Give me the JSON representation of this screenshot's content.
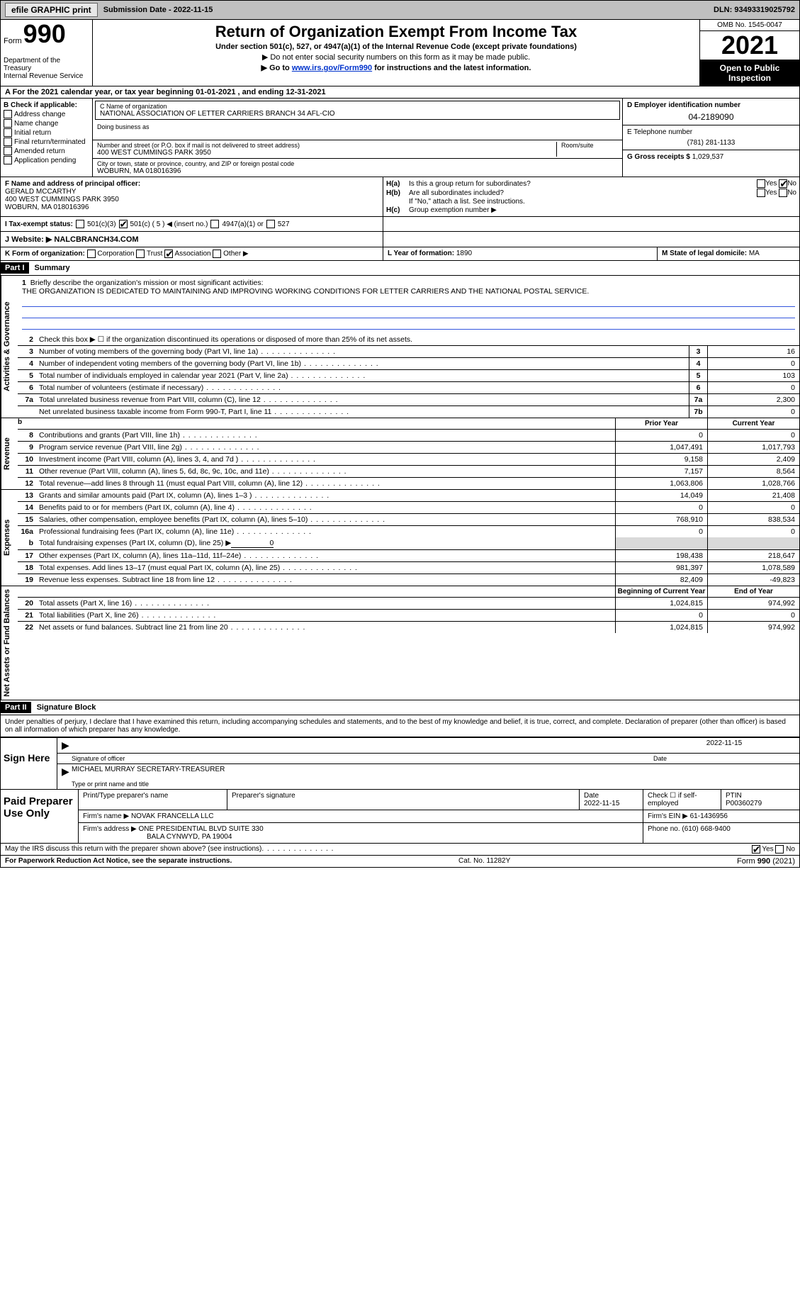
{
  "topbar": {
    "efile": "efile GRAPHIC print",
    "submission_label": "Submission Date - 2022-11-15",
    "dln": "DLN: 93493319025792"
  },
  "header": {
    "form_prefix": "Form",
    "form_number": "990",
    "dept": "Department of the Treasury",
    "irs": "Internal Revenue Service",
    "title": "Return of Organization Exempt From Income Tax",
    "sub1": "Under section 501(c), 527, or 4947(a)(1) of the Internal Revenue Code (except private foundations)",
    "sub2": "▶ Do not enter social security numbers on this form as it may be made public.",
    "sub3_prefix": "▶ Go to ",
    "sub3_link": "www.irs.gov/Form990",
    "sub3_suffix": " for instructions and the latest information.",
    "omb": "OMB No. 1545-0047",
    "year": "2021",
    "open": "Open to Public Inspection"
  },
  "calendar": "A For the 2021 calendar year, or tax year beginning 01-01-2021    , and ending 12-31-2021",
  "blockB": {
    "label": "B Check if applicable:",
    "address": "Address change",
    "name": "Name change",
    "initial": "Initial return",
    "final": "Final return/terminated",
    "amended": "Amended return",
    "app": "Application pending"
  },
  "blockC": {
    "name_label": "C Name of organization",
    "name": "NATIONAL ASSOCIATION OF LETTER CARRIERS BRANCH 34 AFL-CIO",
    "dba_label": "Doing business as",
    "addr_label": "Number and street (or P.O. box if mail is not delivered to street address)",
    "room_label": "Room/suite",
    "addr": "400 WEST CUMMINGS PARK 3950",
    "city_label": "City or town, state or province, country, and ZIP or foreign postal code",
    "city": "WOBURN, MA  018016396"
  },
  "blockD": {
    "label": "D Employer identification number",
    "ein": "04-2189090"
  },
  "blockE": {
    "label": "E Telephone number",
    "phone": "(781) 281-1133"
  },
  "blockG": {
    "label": "G Gross receipts $",
    "amount": "1,029,537"
  },
  "blockF": {
    "label": "F Name and address of principal officer:",
    "name": "GERALD MCCARTHY",
    "addr1": "400 WEST CUMMINGS PARK 3950",
    "addr2": "WOBURN, MA  018016396"
  },
  "blockH": {
    "a_label": "H(a)",
    "a_text": "Is this a group return for subordinates?",
    "b_label": "H(b)",
    "b_text": "Are all subordinates included?",
    "b_note": "If \"No,\" attach a list. See instructions.",
    "c_label": "H(c)",
    "c_text": "Group exemption number ▶",
    "yes": "Yes",
    "no": "No"
  },
  "taxstatus": {
    "label": "I    Tax-exempt status:",
    "c3": "501(c)(3)",
    "c5": "501(c) ( 5 ) ◀ (insert no.)",
    "a1": "4947(a)(1) or",
    "s527": "527"
  },
  "website": {
    "label": "J    Website: ▶",
    "value": "NALCBRANCH34.COM"
  },
  "blockK": {
    "label": "K Form of organization:",
    "corp": "Corporation",
    "trust": "Trust",
    "assoc": "Association",
    "other": "Other ▶"
  },
  "blockL": {
    "label": "L Year of formation:",
    "value": "1890"
  },
  "blockM": {
    "label": "M State of legal domicile:",
    "value": "MA"
  },
  "part1": {
    "header": "Part I",
    "title": "Summary"
  },
  "summary": {
    "q1_label": "1",
    "q1": "Briefly describe the organization's mission or most significant activities:",
    "mission": "THE ORGANIZATION IS DEDICATED TO MAINTAINING AND IMPROVING WORKING CONDITIONS FOR LETTER CARRIERS AND THE NATIONAL POSTAL SERVICE.",
    "q2_label": "2",
    "q2": "Check this box ▶ ☐ if the organization discontinued its operations or disposed of more than 25% of its net assets.",
    "rows": [
      {
        "n": "3",
        "d": "Number of voting members of the governing body (Part VI, line 1a)",
        "b": "3",
        "v": "16"
      },
      {
        "n": "4",
        "d": "Number of independent voting members of the governing body (Part VI, line 1b)",
        "b": "4",
        "v": "0"
      },
      {
        "n": "5",
        "d": "Total number of individuals employed in calendar year 2021 (Part V, line 2a)",
        "b": "5",
        "v": "103"
      },
      {
        "n": "6",
        "d": "Total number of volunteers (estimate if necessary)",
        "b": "6",
        "v": "0"
      },
      {
        "n": "7a",
        "d": "Total unrelated business revenue from Part VIII, column (C), line 12",
        "b": "7a",
        "v": "2,300"
      },
      {
        "n": "",
        "d": "Net unrelated business taxable income from Form 990-T, Part I, line 11",
        "b": "7b",
        "v": "0"
      }
    ],
    "prior": "Prior Year",
    "current": "Current Year"
  },
  "sections": {
    "activities": "Activities & Governance",
    "revenue": "Revenue",
    "expenses": "Expenses",
    "netassets": "Net Assets or Fund Balances"
  },
  "revenue_rows": [
    {
      "n": "8",
      "d": "Contributions and grants (Part VIII, line 1h)",
      "p": "0",
      "c": "0"
    },
    {
      "n": "9",
      "d": "Program service revenue (Part VIII, line 2g)",
      "p": "1,047,491",
      "c": "1,017,793"
    },
    {
      "n": "10",
      "d": "Investment income (Part VIII, column (A), lines 3, 4, and 7d )",
      "p": "9,158",
      "c": "2,409"
    },
    {
      "n": "11",
      "d": "Other revenue (Part VIII, column (A), lines 5, 6d, 8c, 9c, 10c, and 11e)",
      "p": "7,157",
      "c": "8,564"
    },
    {
      "n": "12",
      "d": "Total revenue—add lines 8 through 11 (must equal Part VIII, column (A), line 12)",
      "p": "1,063,806",
      "c": "1,028,766"
    }
  ],
  "expense_rows": [
    {
      "n": "13",
      "d": "Grants and similar amounts paid (Part IX, column (A), lines 1–3 )",
      "p": "14,049",
      "c": "21,408"
    },
    {
      "n": "14",
      "d": "Benefits paid to or for members (Part IX, column (A), line 4)",
      "p": "0",
      "c": "0"
    },
    {
      "n": "15",
      "d": "Salaries, other compensation, employee benefits (Part IX, column (A), lines 5–10)",
      "p": "768,910",
      "c": "838,534"
    },
    {
      "n": "16a",
      "d": "Professional fundraising fees (Part IX, column (A), line 11e)",
      "p": "0",
      "c": "0"
    }
  ],
  "expense_b": {
    "n": "b",
    "d": "Total fundraising expenses (Part IX, column (D), line 25) ▶",
    "v": "0"
  },
  "expense_rows2": [
    {
      "n": "17",
      "d": "Other expenses (Part IX, column (A), lines 11a–11d, 11f–24e)",
      "p": "198,438",
      "c": "218,647"
    },
    {
      "n": "18",
      "d": "Total expenses. Add lines 13–17 (must equal Part IX, column (A), line 25)",
      "p": "981,397",
      "c": "1,078,589"
    },
    {
      "n": "19",
      "d": "Revenue less expenses. Subtract line 18 from line 12",
      "p": "82,409",
      "c": "-49,823"
    }
  ],
  "netassets_header": {
    "begin": "Beginning of Current Year",
    "end": "End of Year"
  },
  "netassets_rows": [
    {
      "n": "20",
      "d": "Total assets (Part X, line 16)",
      "p": "1,024,815",
      "c": "974,992"
    },
    {
      "n": "21",
      "d": "Total liabilities (Part X, line 26)",
      "p": "0",
      "c": "0"
    },
    {
      "n": "22",
      "d": "Net assets or fund balances. Subtract line 21 from line 20",
      "p": "1,024,815",
      "c": "974,992"
    }
  ],
  "part2": {
    "header": "Part II",
    "title": "Signature Block"
  },
  "sig": {
    "perjury": "Under penalties of perjury, I declare that I have examined this return, including accompanying schedules and statements, and to the best of my knowledge and belief, it is true, correct, and complete. Declaration of preparer (other than officer) is based on all information of which preparer has any knowledge.",
    "sign_here": "Sign Here",
    "sig_officer": "Signature of officer",
    "date": "Date",
    "sig_date": "2022-11-15",
    "name_title": "MICHAEL MURRAY  SECRETARY-TREASURER",
    "type_name": "Type or print name and title"
  },
  "paid": {
    "label": "Paid Preparer Use Only",
    "print_name": "Print/Type preparer's name",
    "prep_sig": "Preparer's signature",
    "date_label": "Date",
    "date": "2022-11-15",
    "check_label": "Check ☐ if self-employed",
    "ptin_label": "PTIN",
    "ptin": "P00360279",
    "firm_name_label": "Firm's name    ▶",
    "firm_name": "NOVAK FRANCELLA LLC",
    "firm_ein_label": "Firm's EIN ▶",
    "firm_ein": "61-1436956",
    "firm_addr_label": "Firm's address ▶",
    "firm_addr1": "ONE PRESIDENTIAL BLVD SUITE 330",
    "firm_addr2": "BALA CYNWYD, PA  19004",
    "phone_label": "Phone no.",
    "phone": "(610) 668-9400"
  },
  "discuss": {
    "q": "May the IRS discuss this return with the preparer shown above? (see instructions)",
    "yes": "Yes",
    "no": "No"
  },
  "footer": {
    "pra": "For Paperwork Reduction Act Notice, see the separate instructions.",
    "cat": "Cat. No. 11282Y",
    "form": "Form 990 (2021)"
  }
}
